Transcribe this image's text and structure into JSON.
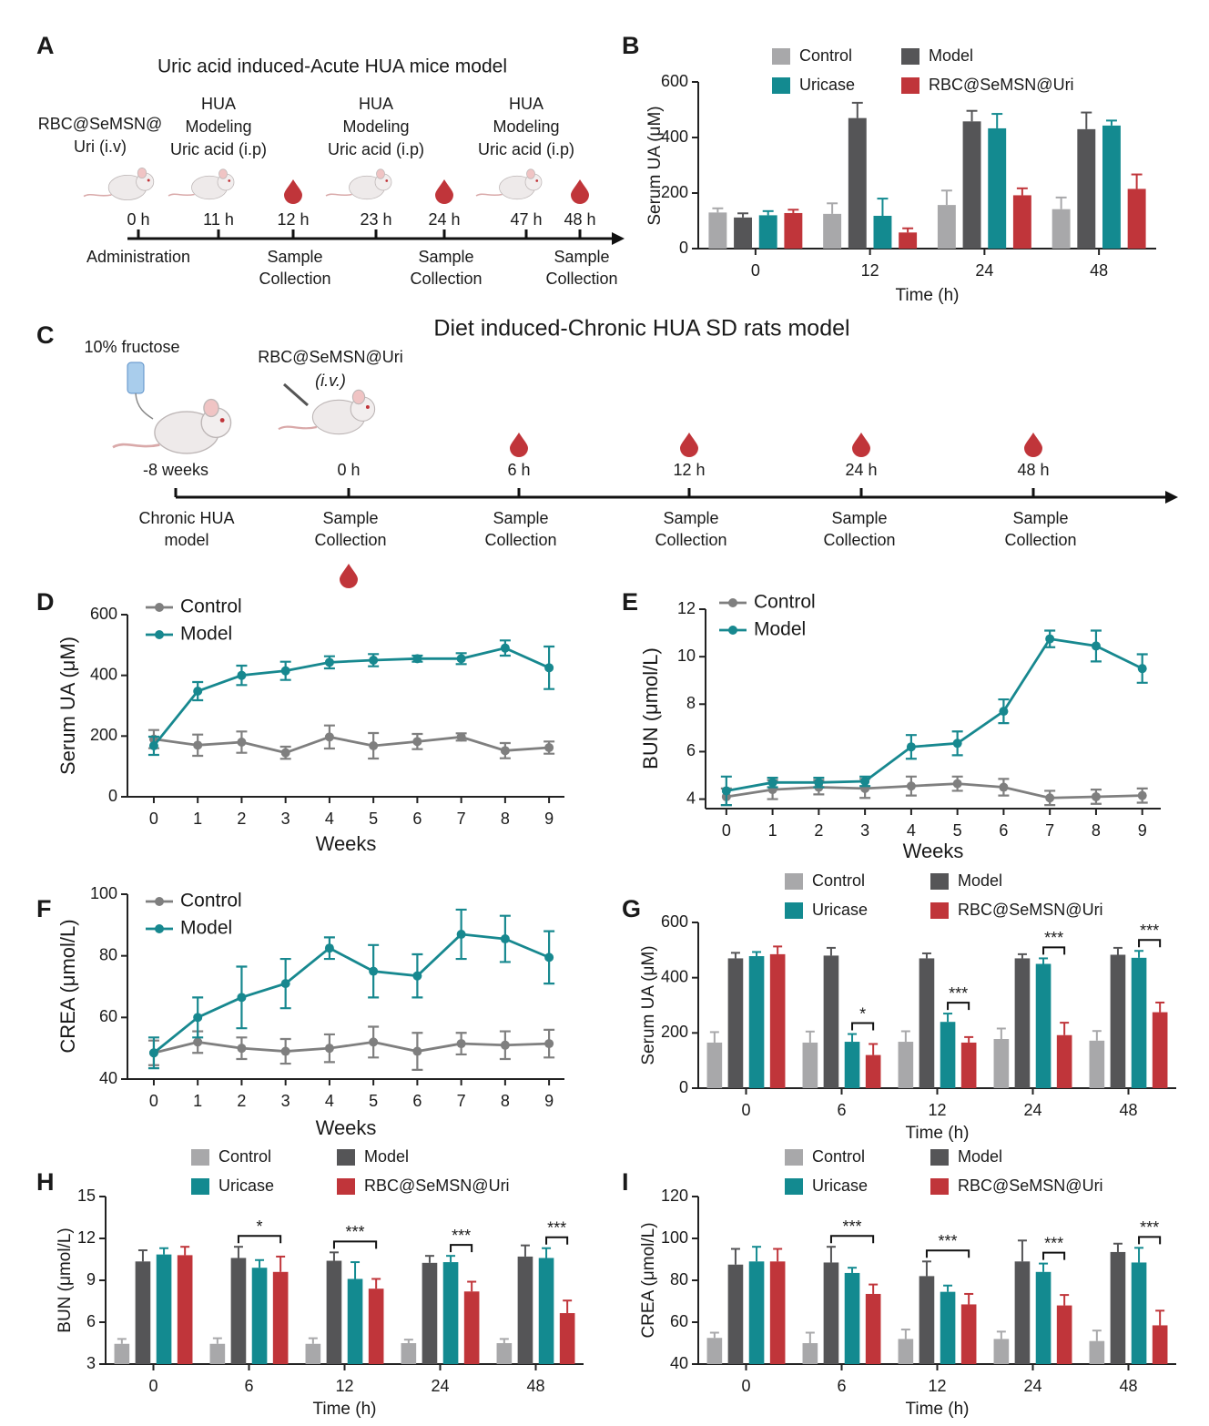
{
  "diagram_a": {
    "label": "A",
    "title": "Uric acid induced-Acute HUA mice model",
    "steps": [
      {
        "time": "0 h",
        "above": [
          "RBC@SeMSN@",
          "Uri (i.v)"
        ],
        "below": [
          "Administration"
        ],
        "drop": false
      },
      {
        "time": "11 h",
        "above": [
          "HUA",
          "Modeling",
          "Uric acid (i.p)"
        ],
        "below": [],
        "drop": false
      },
      {
        "time": "12 h",
        "above": [],
        "below": [
          "Sample",
          "Collection"
        ],
        "drop": true
      },
      {
        "time": "23 h",
        "above": [
          "HUA",
          "Modeling",
          "Uric acid (i.p)"
        ],
        "below": [],
        "drop": false
      },
      {
        "time": "24 h",
        "above": [],
        "below": [
          "Sample",
          "Collection"
        ],
        "drop": true
      },
      {
        "time": "47 h",
        "above": [
          "HUA",
          "Modeling",
          "Uric acid (i.p)"
        ],
        "below": [],
        "drop": false
      },
      {
        "time": "48 h",
        "above": [],
        "below": [
          "Sample",
          "Collection"
        ],
        "drop": true
      }
    ]
  },
  "diagram_c": {
    "label": "C",
    "title": "Diet induced-Chronic HUA SD rats model",
    "steps": [
      {
        "time": "-8 weeks",
        "above": [
          "10% fructose"
        ],
        "below": [
          "Chronic HUA",
          "model"
        ],
        "drop": false
      },
      {
        "time": "0 h",
        "above": [
          "RBC@SeMSN@Uri",
          "(i.v.)"
        ],
        "below": [
          "Sample",
          "Collection"
        ],
        "drop": true
      },
      {
        "time": "6 h",
        "above": [],
        "below": [
          "Sample",
          "Collection"
        ],
        "drop": true
      },
      {
        "time": "12 h",
        "above": [],
        "below": [
          "Sample",
          "Collection"
        ],
        "drop": true
      },
      {
        "time": "24 h",
        "above": [],
        "below": [
          "Sample",
          "Collection"
        ],
        "drop": true
      },
      {
        "time": "48 h",
        "above": [],
        "below": [
          "Sample",
          "Collection"
        ],
        "drop": true
      }
    ]
  },
  "chart_data": [
    {
      "type": "bar",
      "label": "B",
      "x_label": "Time (h)",
      "y_label": "Serum UA (μM)",
      "categories": [
        "0",
        "12",
        "24",
        "48"
      ],
      "ylim": [
        0,
        600
      ],
      "yticks": [
        0,
        200,
        400,
        600
      ],
      "series": [
        {
          "name": "Control",
          "color": "#a8a8aa",
          "values": [
            130,
            125,
            157,
            142
          ],
          "errors": [
            15,
            38,
            52,
            42
          ]
        },
        {
          "name": "Model",
          "color": "#555557",
          "values": [
            112,
            470,
            458,
            430
          ],
          "errors": [
            15,
            55,
            38,
            60
          ]
        },
        {
          "name": "Uricase",
          "color": "#138a90",
          "values": [
            120,
            118,
            433,
            443
          ],
          "errors": [
            15,
            62,
            52,
            18
          ]
        },
        {
          "name": "RBC@SeMSN@Uri",
          "color": "#c0353a",
          "values": [
            128,
            58,
            192,
            215
          ],
          "errors": [
            12,
            15,
            25,
            52
          ]
        }
      ],
      "annotations": []
    },
    {
      "type": "line",
      "label": "D",
      "x_label": "Weeks",
      "y_label": "Serum UA (μM)",
      "x": [
        0,
        1,
        2,
        3,
        4,
        5,
        6,
        7,
        8,
        9
      ],
      "xlim": [
        -0.6,
        9.35
      ],
      "xticks": [
        0,
        1,
        2,
        3,
        4,
        5,
        6,
        7,
        8,
        9
      ],
      "ylim": [
        0,
        600
      ],
      "yticks": [
        0,
        200,
        400,
        600
      ],
      "series": [
        {
          "name": "Control",
          "color": "#7f7f7f",
          "values": [
            190,
            170,
            180,
            145,
            197,
            168,
            182,
            197,
            152,
            162
          ],
          "errors": [
            30,
            35,
            35,
            20,
            38,
            42,
            25,
            12,
            25,
            20
          ]
        },
        {
          "name": "Model",
          "color": "#17888f",
          "values": [
            168,
            348,
            400,
            415,
            443,
            450,
            455,
            455,
            490,
            425
          ],
          "errors": [
            30,
            30,
            32,
            30,
            20,
            20,
            10,
            18,
            25,
            70
          ]
        }
      ]
    },
    {
      "type": "line",
      "label": "E",
      "x_label": "Weeks",
      "y_label": "BUN (μmol/L)",
      "x": [
        0,
        1,
        2,
        3,
        4,
        5,
        6,
        7,
        8,
        9
      ],
      "xlim": [
        -0.45,
        9.4
      ],
      "xticks": [
        0,
        1,
        2,
        3,
        4,
        5,
        6,
        7,
        8,
        9
      ],
      "ylim": [
        3.6,
        12
      ],
      "yticks": [
        4,
        6,
        8,
        10,
        12
      ],
      "series": [
        {
          "name": "Control",
          "color": "#7f7f7f",
          "values": [
            4.1,
            4.4,
            4.5,
            4.45,
            4.55,
            4.65,
            4.5,
            4.05,
            4.1,
            4.15
          ],
          "errors": [
            0.35,
            0.4,
            0.3,
            0.4,
            0.4,
            0.3,
            0.35,
            0.3,
            0.3,
            0.3
          ]
        },
        {
          "name": "Model",
          "color": "#17888f",
          "values": [
            4.35,
            4.7,
            4.7,
            4.75,
            6.2,
            6.35,
            7.7,
            10.75,
            10.45,
            9.5
          ],
          "errors": [
            0.6,
            0.2,
            0.2,
            0.2,
            0.5,
            0.5,
            0.5,
            0.35,
            0.65,
            0.6
          ]
        }
      ]
    },
    {
      "type": "line",
      "label": "F",
      "x_label": "Weeks",
      "y_label": "CREA (μmol/L)",
      "x": [
        0,
        1,
        2,
        3,
        4,
        5,
        6,
        7,
        8,
        9
      ],
      "xlim": [
        -0.6,
        9.35
      ],
      "xticks": [
        0,
        1,
        2,
        3,
        4,
        5,
        6,
        7,
        8,
        9
      ],
      "ylim": [
        40,
        100
      ],
      "yticks": [
        40,
        60,
        80,
        100
      ],
      "series": [
        {
          "name": "Control",
          "color": "#7f7f7f",
          "values": [
            48.5,
            52,
            50,
            49,
            50,
            52,
            49,
            51.5,
            51,
            51.5
          ],
          "errors": [
            4,
            3.5,
            3.5,
            4,
            4.5,
            5,
            6,
            3.5,
            4.5,
            4.5
          ]
        },
        {
          "name": "Model",
          "color": "#17888f",
          "values": [
            48.5,
            60,
            66.5,
            71,
            82.5,
            75,
            73.5,
            87,
            85.5,
            79.5
          ],
          "errors": [
            5,
            6.5,
            10,
            8,
            3.5,
            8.5,
            7,
            8,
            7.5,
            8.5
          ]
        }
      ]
    },
    {
      "type": "bar",
      "label": "G",
      "x_label": "Time (h)",
      "y_label": "Serum UA (μM)",
      "categories": [
        "0",
        "6",
        "12",
        "24",
        "48"
      ],
      "ylim": [
        0,
        600
      ],
      "yticks": [
        0,
        200,
        400,
        600
      ],
      "series": [
        {
          "name": "Control",
          "color": "#a8a8aa",
          "values": [
            165,
            165,
            168,
            178,
            172
          ],
          "errors": [
            38,
            40,
            38,
            38,
            35
          ]
        },
        {
          "name": "Model",
          "color": "#555557",
          "values": [
            470,
            480,
            470,
            470,
            483
          ],
          "errors": [
            20,
            28,
            18,
            15,
            25
          ]
        },
        {
          "name": "Uricase",
          "color": "#138a90",
          "values": [
            478,
            168,
            240,
            450,
            472
          ],
          "errors": [
            15,
            28,
            30,
            20,
            25
          ]
        },
        {
          "name": "RBC@SeMSN@Uri",
          "color": "#c0353a",
          "values": [
            485,
            120,
            165,
            192,
            275
          ],
          "errors": [
            28,
            40,
            20,
            45,
            35
          ]
        }
      ],
      "annotations": [
        {
          "text": "*",
          "x": "6",
          "series": [
            "Uricase",
            "RBC@SeMSN@Uri"
          ]
        },
        {
          "text": "***",
          "x": "12",
          "series": [
            "Uricase",
            "RBC@SeMSN@Uri"
          ]
        },
        {
          "text": "***",
          "x": "24",
          "series": [
            "Uricase",
            "RBC@SeMSN@Uri"
          ]
        },
        {
          "text": "***",
          "x": "48",
          "series": [
            "Uricase",
            "RBC@SeMSN@Uri"
          ]
        }
      ]
    },
    {
      "type": "bar",
      "label": "H",
      "x_label": "Time (h)",
      "y_label": "BUN (μmol/L)",
      "categories": [
        "0",
        "6",
        "12",
        "24",
        "48"
      ],
      "ylim": [
        3,
        15
      ],
      "yticks": [
        3,
        6,
        9,
        12,
        15
      ],
      "series": [
        {
          "name": "Control",
          "color": "#a8a8aa",
          "values": [
            4.45,
            4.45,
            4.45,
            4.5,
            4.5
          ],
          "errors": [
            0.35,
            0.4,
            0.4,
            0.25,
            0.3
          ]
        },
        {
          "name": "Model",
          "color": "#555557",
          "values": [
            10.35,
            10.6,
            10.4,
            10.25,
            10.7
          ],
          "errors": [
            0.8,
            0.8,
            0.6,
            0.5,
            0.8
          ]
        },
        {
          "name": "Uricase",
          "color": "#138a90",
          "values": [
            10.85,
            9.9,
            9.1,
            10.3,
            10.6
          ],
          "errors": [
            0.45,
            0.55,
            1.2,
            0.45,
            0.7
          ]
        },
        {
          "name": "RBC@SeMSN@Uri",
          "color": "#c0353a",
          "values": [
            10.8,
            9.6,
            8.4,
            8.2,
            6.65
          ],
          "errors": [
            0.6,
            1.1,
            0.7,
            0.7,
            0.9
          ]
        }
      ],
      "annotations": [
        {
          "text": "*",
          "x": "6",
          "series": [
            "Model",
            "RBC@SeMSN@Uri"
          ]
        },
        {
          "text": "***",
          "x": "12",
          "series": [
            "Model",
            "RBC@SeMSN@Uri"
          ]
        },
        {
          "text": "***",
          "x": "24",
          "series": [
            "Uricase",
            "RBC@SeMSN@Uri"
          ]
        },
        {
          "text": "***",
          "x": "48",
          "series": [
            "Uricase",
            "RBC@SeMSN@Uri"
          ]
        }
      ]
    },
    {
      "type": "bar",
      "label": "I",
      "x_label": "Time (h)",
      "y_label": "CREA (μmol/L)",
      "categories": [
        "0",
        "6",
        "12",
        "24",
        "48"
      ],
      "ylim": [
        40,
        120
      ],
      "yticks": [
        40,
        60,
        80,
        100,
        120
      ],
      "series": [
        {
          "name": "Control",
          "color": "#a8a8aa",
          "values": [
            52.5,
            50,
            52,
            52,
            51
          ],
          "errors": [
            2.5,
            5,
            4.5,
            3.5,
            5
          ]
        },
        {
          "name": "Model",
          "color": "#555557",
          "values": [
            87.5,
            88.5,
            82,
            89,
            93.5
          ],
          "errors": [
            7.5,
            7.5,
            7,
            10,
            4
          ]
        },
        {
          "name": "Uricase",
          "color": "#138a90",
          "values": [
            89,
            83.5,
            74.5,
            84,
            88.5
          ],
          "errors": [
            7,
            2.5,
            3,
            4,
            7
          ]
        },
        {
          "name": "RBC@SeMSN@Uri",
          "color": "#c0353a",
          "values": [
            89,
            73.5,
            68.5,
            68,
            58.5
          ],
          "errors": [
            6,
            4.5,
            5,
            5,
            7
          ]
        }
      ],
      "annotations": [
        {
          "text": "***",
          "x": "6",
          "series": [
            "Model",
            "RBC@SeMSN@Uri"
          ]
        },
        {
          "text": "***",
          "x": "12",
          "series": [
            "Model",
            "RBC@SeMSN@Uri"
          ]
        },
        {
          "text": "***",
          "x": "24",
          "series": [
            "Uricase",
            "RBC@SeMSN@Uri"
          ]
        },
        {
          "text": "***",
          "x": "48",
          "series": [
            "Uricase",
            "RBC@SeMSN@Uri"
          ]
        }
      ]
    }
  ]
}
